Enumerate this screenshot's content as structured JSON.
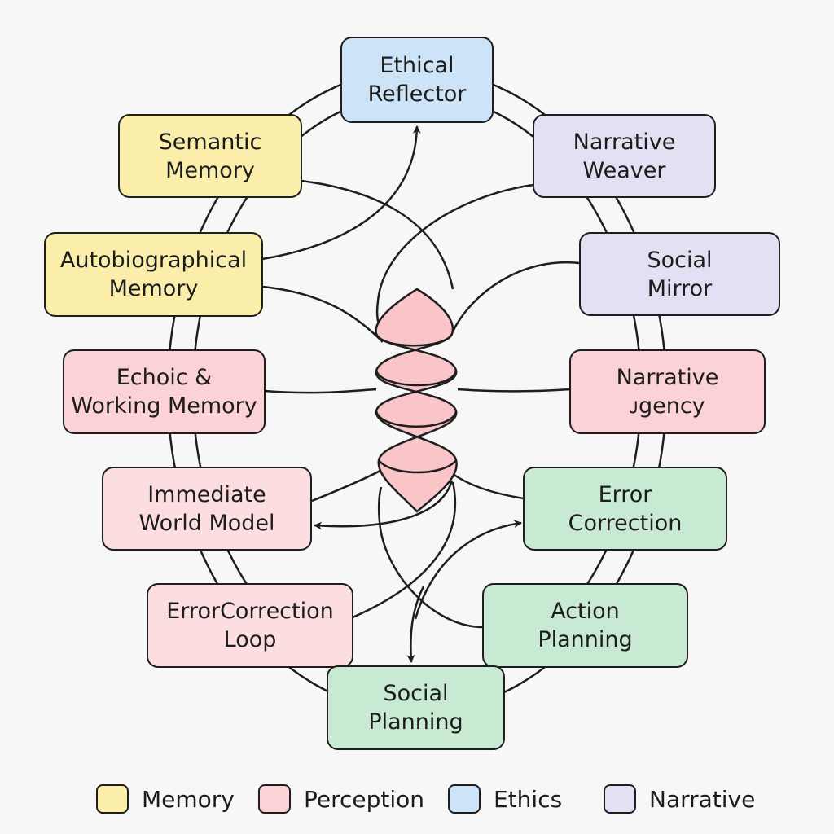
{
  "nodes": [
    {
      "id": "ethical-reflector",
      "label": "Ethical\nReflector",
      "category": "ethics"
    },
    {
      "id": "semantic-memory",
      "label": "Semantic\nMemory",
      "category": "memory"
    },
    {
      "id": "narrative-weaver",
      "label": "Narrative\nWeaver",
      "category": "narrative"
    },
    {
      "id": "autobiographical-memory",
      "label": "Autobiographical\nMemory",
      "category": "memory"
    },
    {
      "id": "social-mirror",
      "label": "Social\nMirror",
      "category": "narrative"
    },
    {
      "id": "echoic-working-memory",
      "label": "Echoic &\nWorking Memory",
      "category": "perception"
    },
    {
      "id": "narrative-agency",
      "label": "Narrative\nᴊgency",
      "category": "perception"
    },
    {
      "id": "immediate-world-model",
      "label": "Immediate\nWorld Model",
      "category": "perception-light"
    },
    {
      "id": "error-correction",
      "label": "Error\nCorrection",
      "category": "action"
    },
    {
      "id": "error-correction-loop",
      "label": "ErrorCorrection\nLoop",
      "category": "perception-light"
    },
    {
      "id": "action-planning",
      "label": "Action\nPlanning",
      "category": "action"
    },
    {
      "id": "social-planning",
      "label": "Social\nPlanning",
      "category": "action"
    }
  ],
  "colors": {
    "memory": "#fbedaa",
    "perception": "#fbd2d5",
    "perception-light": "#fcdde0",
    "ethics": "#cce3f8",
    "narrative": "#e4dff2",
    "action": "#c8ead2",
    "helix": "#f9c5c9",
    "line": "#1e1e1e"
  },
  "legend": [
    {
      "label": "Memory",
      "color": "#fbedaa"
    },
    {
      "label": "Perception",
      "color": "#fbd2d5"
    },
    {
      "label": "Ethics",
      "color": "#cce3f8"
    },
    {
      "label": "Narrative",
      "color": "#e4dff2"
    }
  ]
}
